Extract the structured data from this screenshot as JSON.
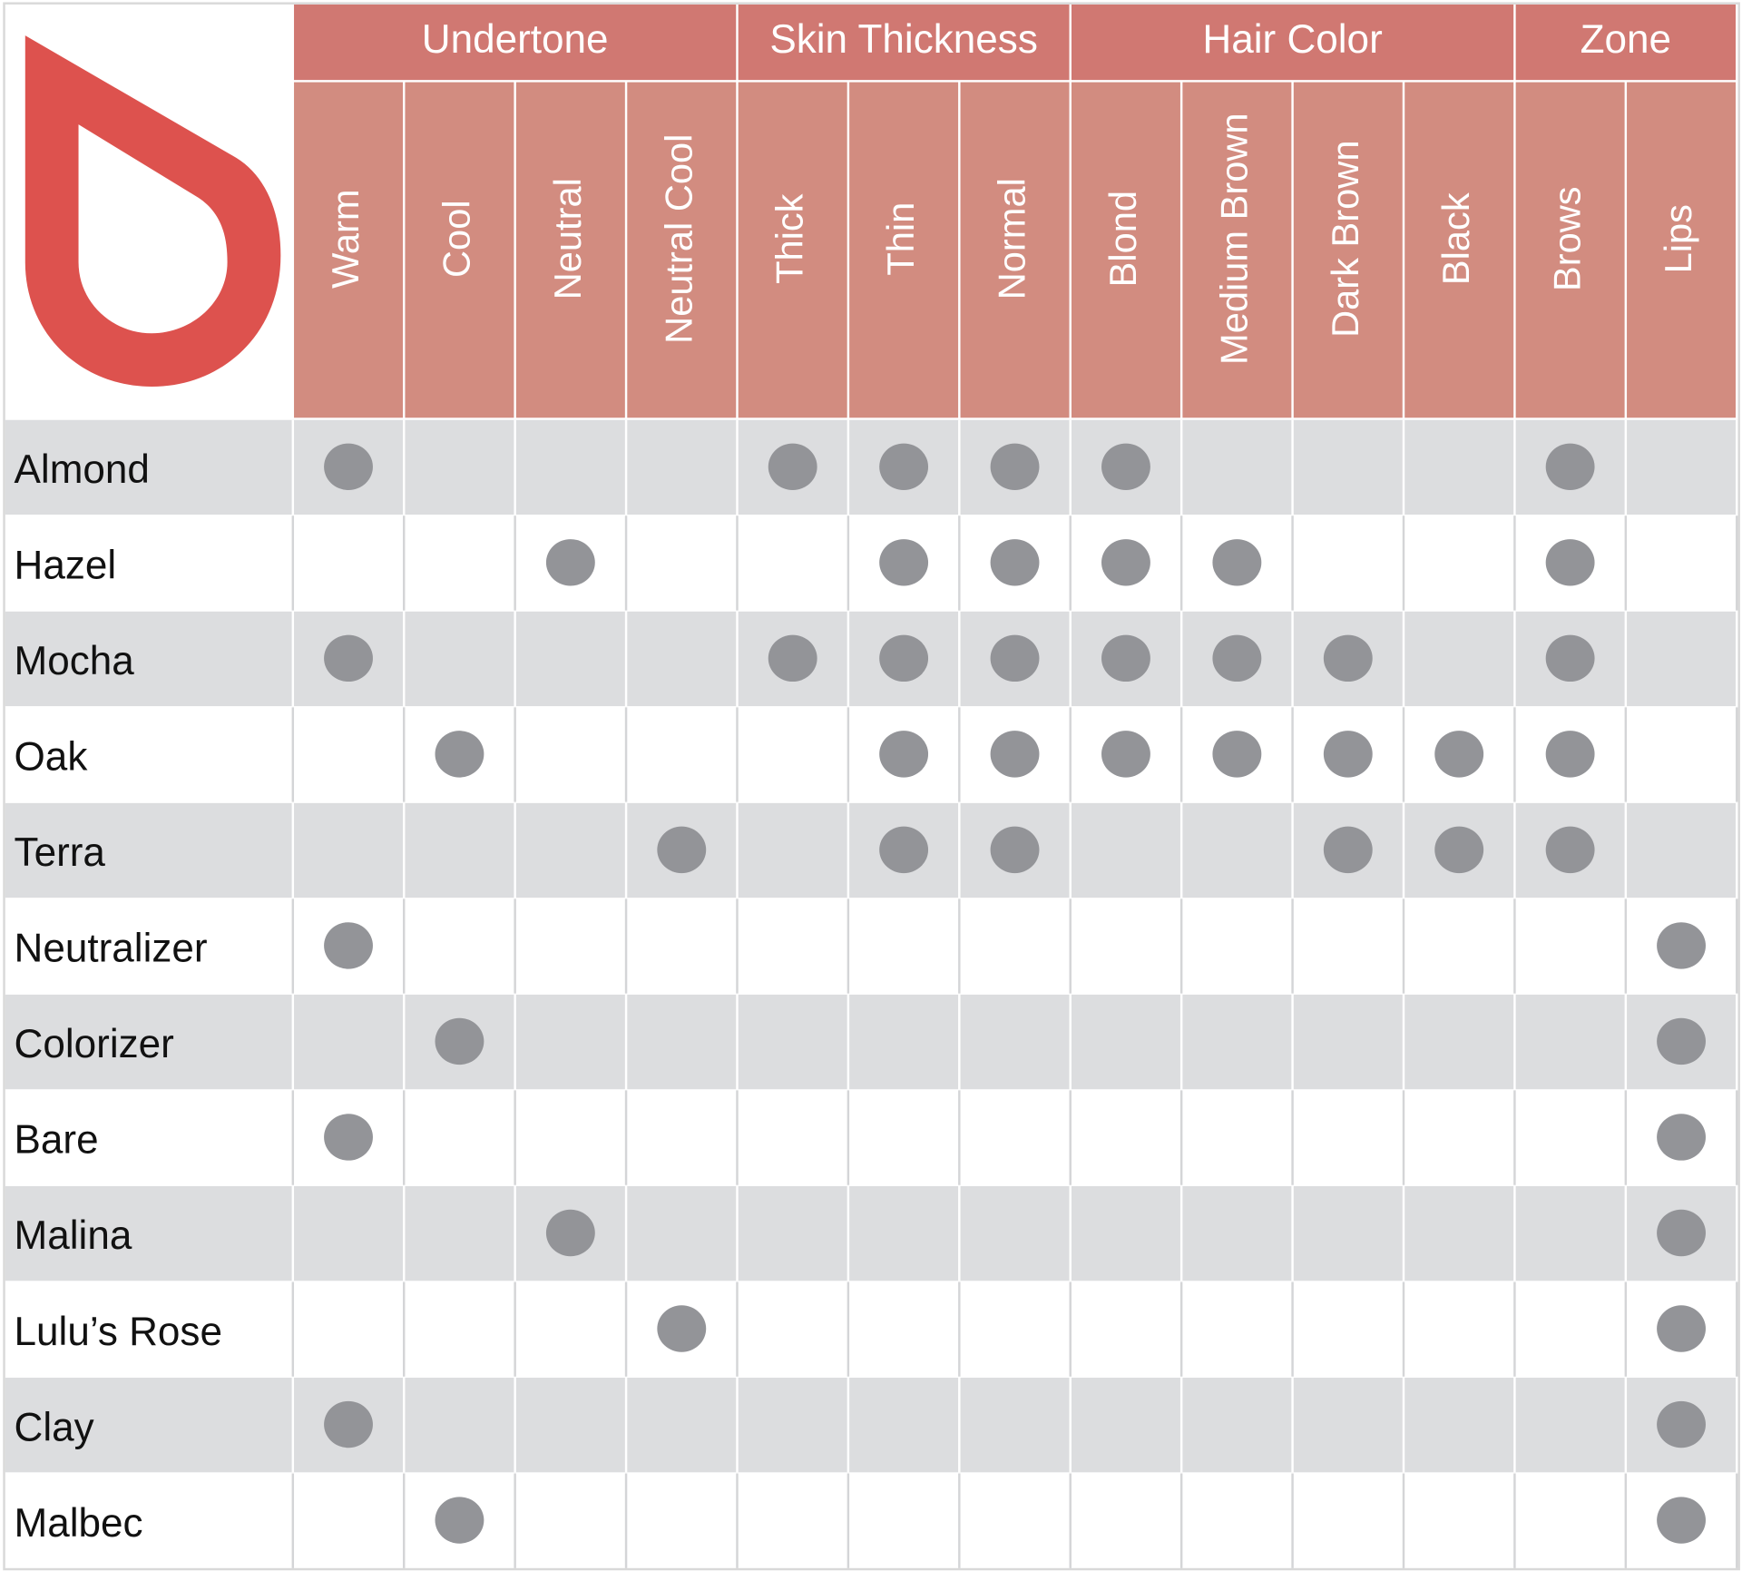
{
  "table": {
    "groups": [
      {
        "label": "Undertone",
        "span": 4
      },
      {
        "label": "Skin Thickness",
        "span": 3
      },
      {
        "label": "Hair Color",
        "span": 4
      },
      {
        "label": "Zone",
        "span": 2
      }
    ],
    "columns": [
      "Warm",
      "Cool",
      "Neutral",
      "Neutral Cool",
      "Thick",
      "Thin",
      "Normal",
      "Blond",
      "Medium Brown",
      "Dark Brown",
      "Black",
      "Brows",
      "Lips"
    ],
    "rows": [
      {
        "name": "Almond",
        "cells": [
          true,
          false,
          false,
          false,
          true,
          true,
          true,
          true,
          false,
          false,
          false,
          true,
          false
        ]
      },
      {
        "name": "Hazel",
        "cells": [
          false,
          false,
          true,
          false,
          false,
          true,
          true,
          true,
          true,
          false,
          false,
          true,
          false
        ]
      },
      {
        "name": "Mocha",
        "cells": [
          true,
          false,
          false,
          false,
          true,
          true,
          true,
          true,
          true,
          true,
          false,
          true,
          false
        ]
      },
      {
        "name": "Oak",
        "cells": [
          false,
          true,
          false,
          false,
          false,
          true,
          true,
          true,
          true,
          true,
          true,
          true,
          false
        ]
      },
      {
        "name": "Terra",
        "cells": [
          false,
          false,
          false,
          true,
          false,
          true,
          true,
          false,
          false,
          true,
          true,
          true,
          false
        ]
      },
      {
        "name": "Neutralizer",
        "cells": [
          true,
          false,
          false,
          false,
          false,
          false,
          false,
          false,
          false,
          false,
          false,
          false,
          true
        ]
      },
      {
        "name": "Colorizer",
        "cells": [
          false,
          true,
          false,
          false,
          false,
          false,
          false,
          false,
          false,
          false,
          false,
          false,
          true
        ]
      },
      {
        "name": "Bare",
        "cells": [
          true,
          false,
          false,
          false,
          false,
          false,
          false,
          false,
          false,
          false,
          false,
          false,
          true
        ]
      },
      {
        "name": "Malina",
        "cells": [
          false,
          false,
          true,
          false,
          false,
          false,
          false,
          false,
          false,
          false,
          false,
          false,
          true
        ]
      },
      {
        "name": "Lulu’s Rose",
        "cells": [
          false,
          false,
          false,
          true,
          false,
          false,
          false,
          false,
          false,
          false,
          false,
          false,
          true
        ]
      },
      {
        "name": "Clay",
        "cells": [
          true,
          false,
          false,
          false,
          false,
          false,
          false,
          false,
          false,
          false,
          false,
          false,
          true
        ]
      },
      {
        "name": "Malbec",
        "cells": [
          false,
          true,
          false,
          false,
          false,
          false,
          false,
          false,
          false,
          false,
          false,
          false,
          true
        ]
      }
    ]
  }
}
